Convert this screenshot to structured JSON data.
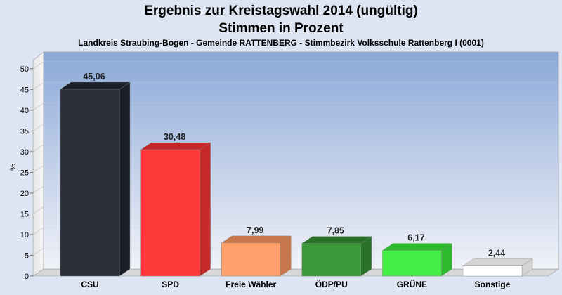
{
  "chart_data": {
    "type": "bar",
    "title": "Ergebnis zur Kreistagswahl 2014 (ungültig)",
    "title2": "Stimmen in Prozent",
    "subtitle": "Landkreis Straubing-Bogen - Gemeinde RATTENBERG - Stimmbezirk Volksschule Rattenberg I (0001)",
    "ylabel": "%",
    "xlabel": "",
    "ylim": [
      0,
      52
    ],
    "yticks": [
      "0",
      "5",
      "10",
      "15",
      "20",
      "25",
      "30",
      "35",
      "40",
      "45",
      "50"
    ],
    "grid": true,
    "categories": [
      "CSU",
      "SPD",
      "Freie Wähler",
      "ÖDP/PU",
      "GRÜNE",
      "Sonstige"
    ],
    "values": [
      45.06,
      30.48,
      7.99,
      7.85,
      6.17,
      2.44
    ],
    "value_labels": [
      "45,06",
      "30,48",
      "7,99",
      "7,85",
      "6,17",
      "2,44"
    ],
    "colors": [
      "#2a2f3a",
      "#ff3a3a",
      "#ff9f6a",
      "#3a9a3a",
      "#44ee44",
      "#ffffff"
    ],
    "colors_dark": [
      "#1c1f27",
      "#c42828",
      "#c8774c",
      "#2a722a",
      "#2eb82e",
      "#d4d4d4"
    ]
  }
}
